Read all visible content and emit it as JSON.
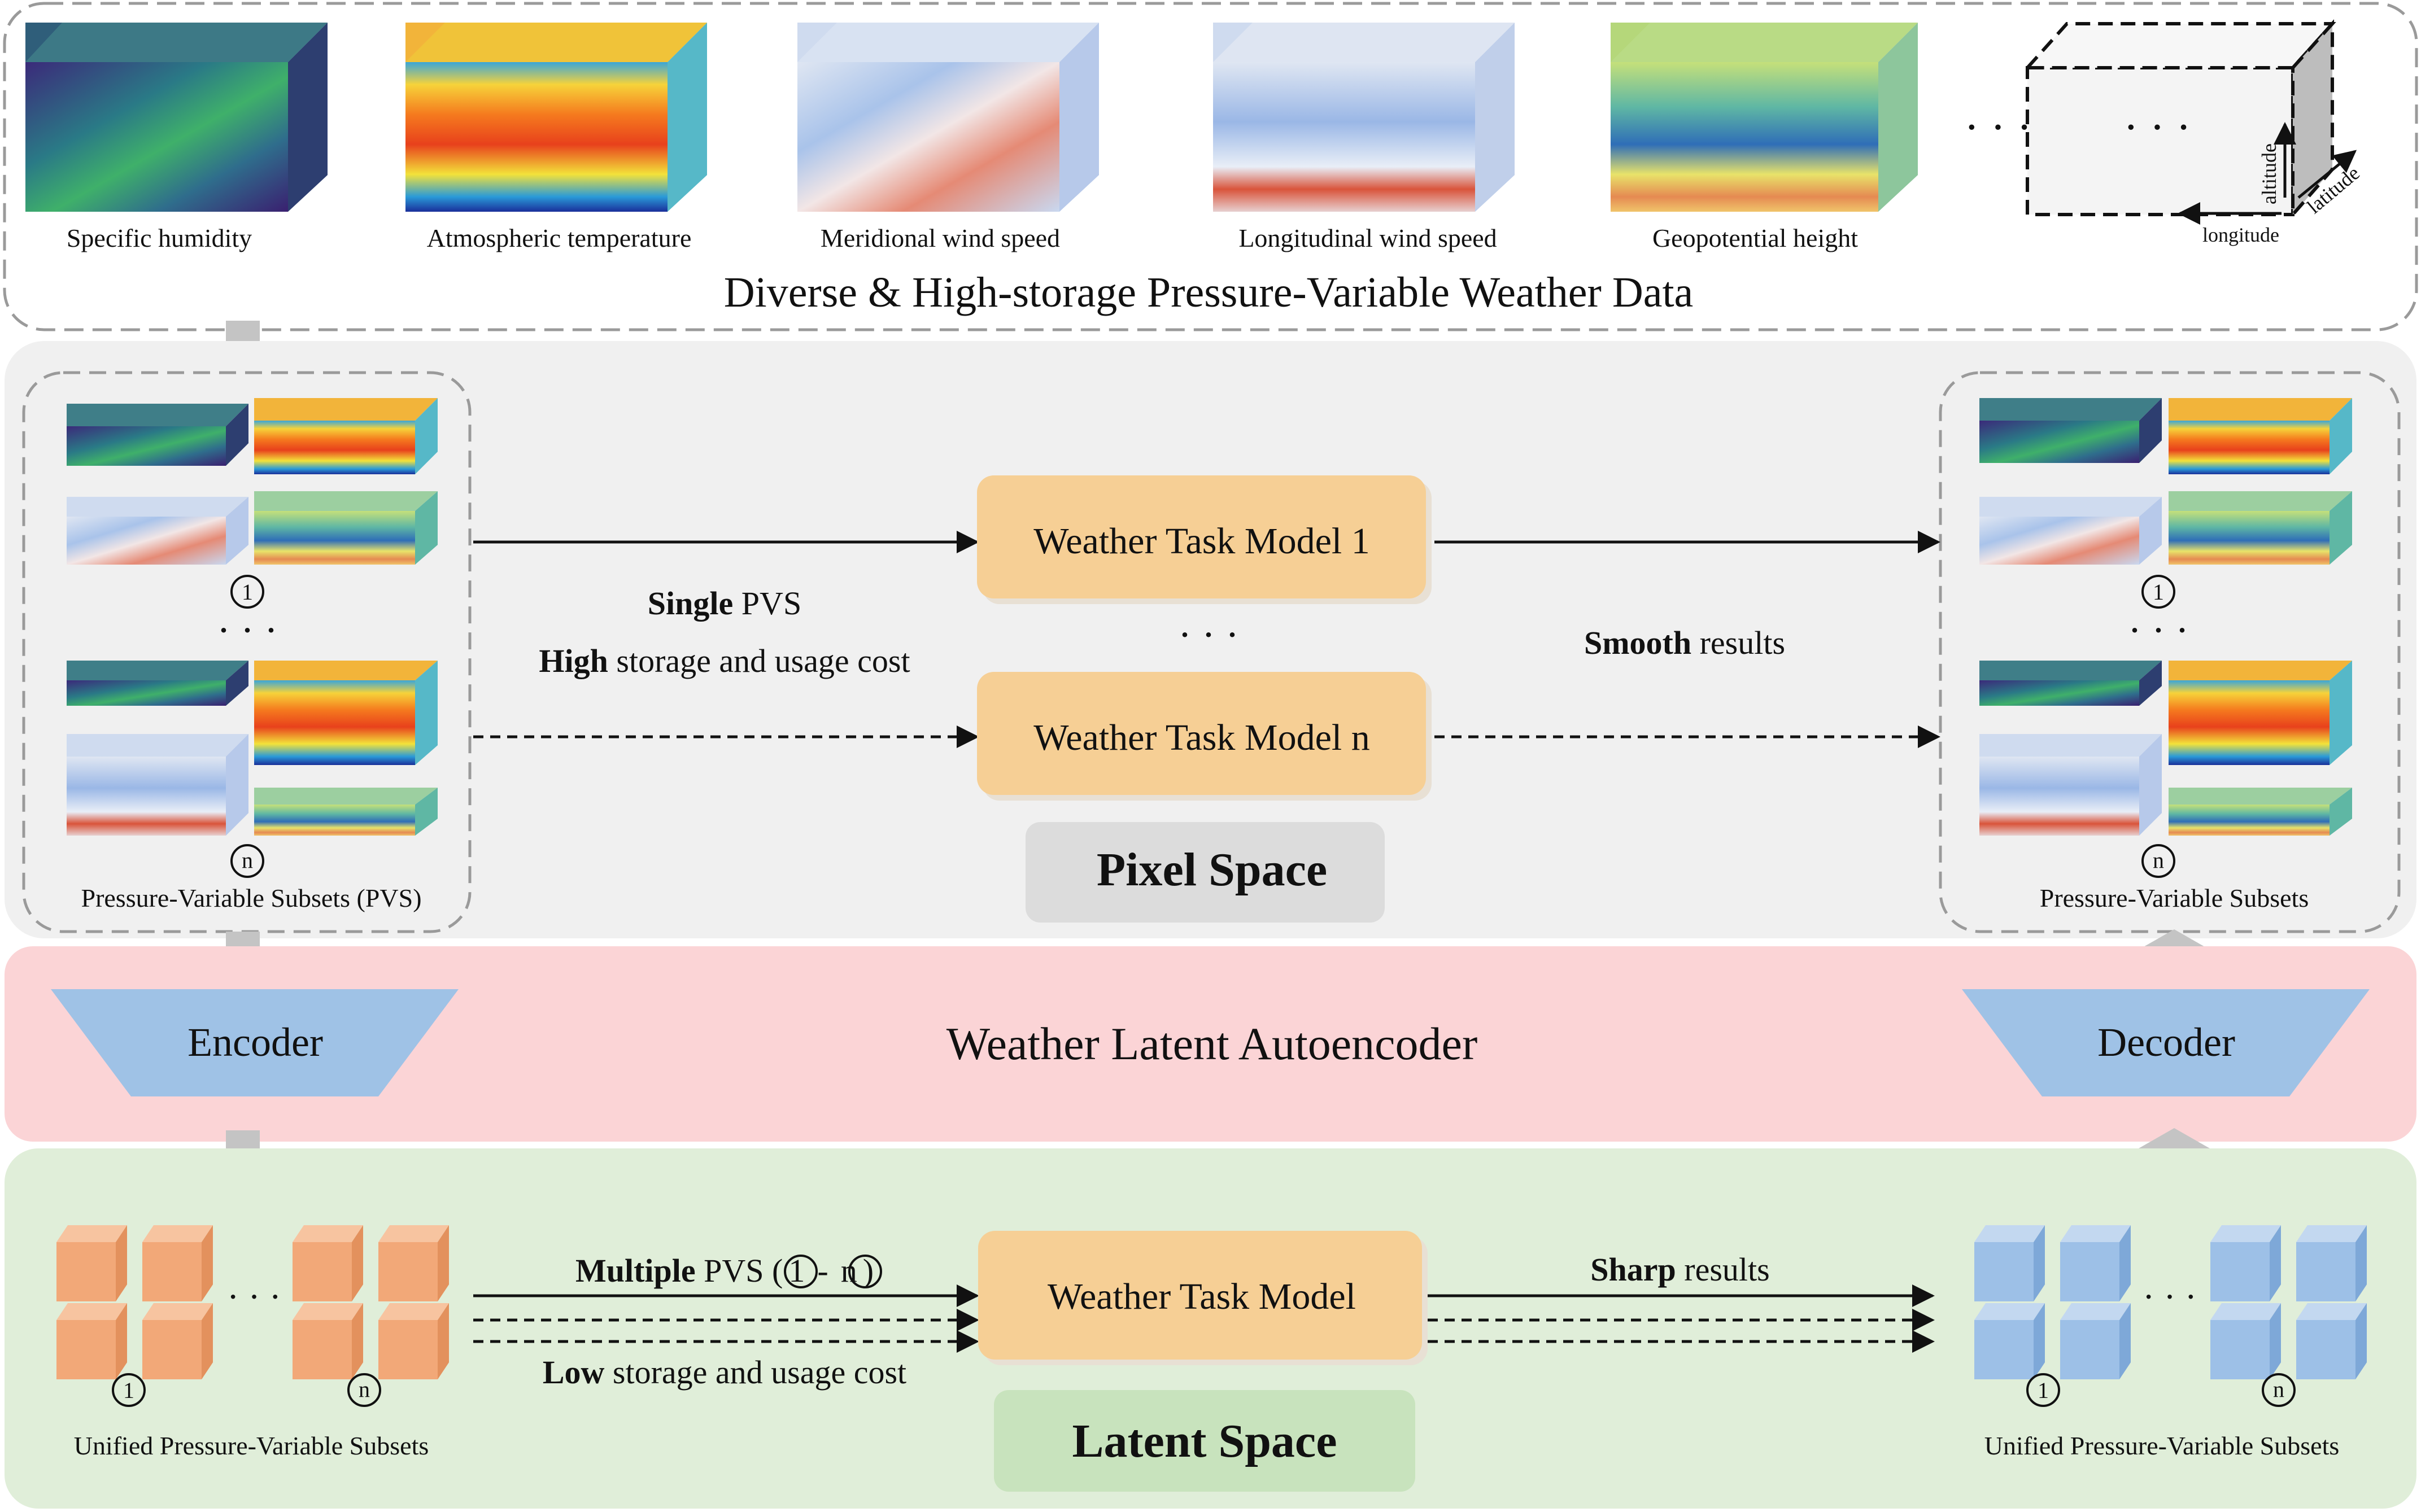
{
  "top": {
    "variables": [
      "Specific humidity",
      "Atmospheric temperature",
      "Meridional wind speed",
      "Longitudinal wind speed",
      "Geopotential height"
    ],
    "ellipsis": "· · ·",
    "axes": {
      "altitude": "altitude",
      "latitude": "latitude",
      "longitude": "longitude"
    },
    "title": "Diverse & High-storage Pressure-Variable Weather Data"
  },
  "pixel": {
    "left_caption": "Pressure-Variable Subsets (PVS)",
    "right_caption": "Pressure-Variable Subsets",
    "num_1": "1",
    "num_n": "n",
    "ellipsis": "· · ·",
    "model_1": "Weather Task Model 1",
    "model_n": "Weather Task Model n",
    "model_ellipsis": "· · ·",
    "cost_line1_bold": "Single",
    "cost_line1_rest": " PVS",
    "cost_line2_bold": "High",
    "cost_line2_rest": " storage and usage cost",
    "result_bold": "Smooth",
    "result_rest": " results",
    "space_label": "Pixel Space"
  },
  "autoencoder": {
    "encoder": "Encoder",
    "decoder": "Decoder",
    "title": "Weather Latent Autoencoder"
  },
  "latent": {
    "left_caption": "Unified Pressure-Variable Subsets",
    "right_caption": "Unified Pressure-Variable Subsets",
    "num_1": "1",
    "num_n": "n",
    "ellipsis": "· · ·",
    "pvs_bold": "Multiple",
    "pvs_rest": " PVS (",
    "pvs_dash": "-",
    "pvs_close": ")",
    "cost_bold": "Low",
    "cost_rest": " storage and usage cost",
    "model": "Weather Task Model",
    "result_bold": "Sharp",
    "result_rest": " results",
    "space_label": "Latent Space"
  },
  "colors": {
    "pixel_bg": "#f0f0f0",
    "autoencoder_bg": "#fbd4d6",
    "latent_bg": "#e0eed9",
    "model_box": "#f6cf95",
    "encoder": "#9fc2e6",
    "orange_cube": "#f2a878",
    "blue_cube": "#9dc0e7",
    "latent_label_bg": "#c8e3bd",
    "pixel_label_bg": "#dcdcdc"
  }
}
